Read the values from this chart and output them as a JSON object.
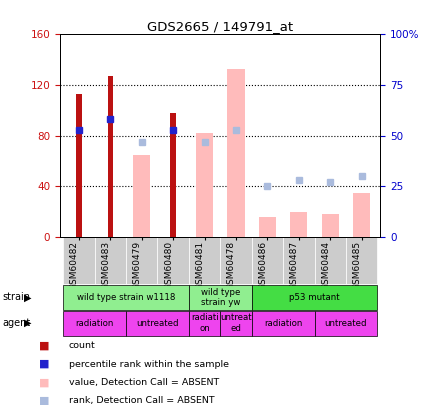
{
  "title": "GDS2665 / 149791_at",
  "samples": [
    "GSM60482",
    "GSM60483",
    "GSM60479",
    "GSM60480",
    "GSM60481",
    "GSM60478",
    "GSM60486",
    "GSM60487",
    "GSM60484",
    "GSM60485"
  ],
  "count_values": [
    113,
    127,
    null,
    98,
    null,
    null,
    null,
    null,
    null,
    null
  ],
  "percentile_rank": [
    53,
    58,
    null,
    53,
    null,
    null,
    null,
    null,
    null,
    null
  ],
  "absent_value": [
    null,
    null,
    65,
    null,
    82,
    133,
    16,
    20,
    18,
    35
  ],
  "absent_rank": [
    null,
    null,
    47,
    null,
    47,
    53,
    25,
    28,
    27,
    30
  ],
  "ylim_left": [
    0,
    160
  ],
  "ylim_right": [
    0,
    100
  ],
  "yticks_left": [
    0,
    40,
    80,
    120,
    160
  ],
  "yticks_right": [
    0,
    25,
    50,
    75,
    100
  ],
  "yticklabels_right": [
    "0",
    "25",
    "50",
    "75",
    "100%"
  ],
  "strain_groups": [
    {
      "label": "wild type strain w1118",
      "start": 0,
      "end": 4,
      "color": "#90ee90"
    },
    {
      "label": "wild type\nstrain yw",
      "start": 4,
      "end": 6,
      "color": "#90ee90"
    },
    {
      "label": "p53 mutant",
      "start": 6,
      "end": 10,
      "color": "#44dd44"
    }
  ],
  "agent_groups": [
    {
      "label": "radiation",
      "start": 0,
      "end": 2,
      "color": "#ee44ee"
    },
    {
      "label": "untreated",
      "start": 2,
      "end": 4,
      "color": "#ee44ee"
    },
    {
      "label": "radiati-\non",
      "start": 4,
      "end": 5,
      "color": "#ee44ee"
    },
    {
      "label": "untreat-\ned",
      "start": 5,
      "end": 6,
      "color": "#ee44ee"
    },
    {
      "label": "radiation",
      "start": 6,
      "end": 8,
      "color": "#ee44ee"
    },
    {
      "label": "untreated",
      "start": 8,
      "end": 10,
      "color": "#ee44ee"
    }
  ],
  "count_color": "#bb1111",
  "percentile_color": "#2222cc",
  "absent_value_color": "#ffbbbb",
  "absent_rank_color": "#aabbdd",
  "left_axis_color": "#cc1111",
  "right_axis_color": "#0000cc",
  "bg_color": "#ffffff",
  "plot_bg_color": "#ffffff",
  "tick_label_bg": "#cccccc"
}
